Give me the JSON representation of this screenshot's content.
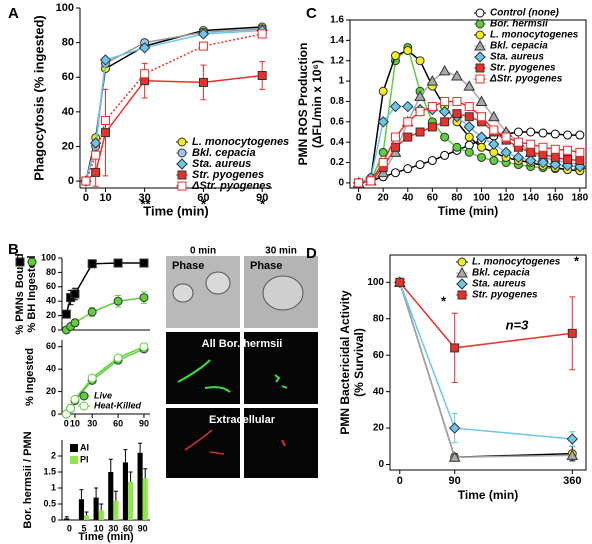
{
  "chart_data": [
    {
      "type": "line",
      "panel_label": "A",
      "xlabel": "Time (min)",
      "ylabel": [
        "Phagocytosis (% ingested)"
      ],
      "x": [
        0,
        5,
        10,
        30,
        60,
        90
      ],
      "xlim": [
        -3,
        95
      ],
      "xticks": [
        0,
        10,
        30,
        60,
        90
      ],
      "ylim": [
        -4,
        100
      ],
      "yticks": [
        0,
        20,
        40,
        60,
        80,
        100
      ],
      "series": [
        {
          "name": "L. monocytogenes",
          "color": "#f2ee1a",
          "line_color": "#000000",
          "marker": "circle",
          "values": [
            0,
            25,
            65,
            78,
            87,
            89
          ]
        },
        {
          "name": "Bkl. cepacia",
          "color": "#9fc9ea",
          "line_color": "#9a9a9a",
          "marker": "circle",
          "values": [
            0,
            20,
            68,
            80,
            86,
            88
          ]
        },
        {
          "name": "Sta. aureus",
          "color": "#6cc6ea",
          "marker": "diamond",
          "values": [
            0,
            22,
            70,
            77,
            85,
            87
          ]
        },
        {
          "name": "Str. pyogenes",
          "color": "#e8312a",
          "marker": "square",
          "values": [
            0,
            5,
            28,
            58,
            57,
            61
          ],
          "errors": [
            0,
            8,
            25,
            10,
            10,
            8
          ]
        },
        {
          "name": "ΔStr. pyogenes",
          "color": "#e8312a",
          "marker": "square",
          "filled": false,
          "dashed": true,
          "values": [
            0,
            15,
            35,
            62,
            78,
            85
          ]
        }
      ],
      "annotations": [
        "**",
        "*",
        "*"
      ]
    },
    {
      "type": "line",
      "panel_label": "B",
      "ylabel": [
        "% PMNs Bound",
        "% BH Ingested"
      ],
      "x": [
        0,
        5,
        10,
        30,
        60,
        90
      ],
      "xlim": [
        -5,
        97
      ],
      "ylim": [
        0,
        100
      ],
      "yticks": [
        0,
        20,
        40,
        60,
        80,
        100
      ],
      "series": [
        {
          "color": "#000000",
          "marker": "square",
          "values": [
            22,
            45,
            50,
            92,
            93,
            93
          ],
          "errors": [
            5,
            10,
            8,
            4,
            4,
            4
          ]
        },
        {
          "color": "#5ccf3a",
          "marker": "circle",
          "values": [
            0,
            5,
            10,
            25,
            40,
            45
          ],
          "errors": [
            2,
            4,
            5,
            6,
            8,
            8
          ]
        }
      ]
    },
    {
      "type": "line",
      "ylabel": [
        "% Ingested"
      ],
      "x": [
        0,
        5,
        10,
        30,
        60,
        90
      ],
      "xlim": [
        -5,
        97
      ],
      "xticks": [
        0,
        10,
        30,
        60,
        90
      ],
      "ylim": [
        0,
        66
      ],
      "yticks": [
        0,
        20,
        40,
        60
      ],
      "series": [
        {
          "name": "Live",
          "color": "#5ccf3a",
          "marker": "circle",
          "values": [
            0,
            5,
            12,
            30,
            48,
            58
          ]
        },
        {
          "name": "Heat-Killed",
          "color": "#5ccf3a",
          "marker": "circle",
          "filled": false,
          "values": [
            0,
            5,
            13,
            32,
            50,
            60
          ]
        }
      ]
    },
    {
      "type": "bar",
      "xlabel": "Time (min)",
      "ylabel": [
        "Bor. hermsii / PMN"
      ],
      "categories": [
        "0",
        "5",
        "10",
        "30",
        "60",
        "90"
      ],
      "ylim": [
        0,
        2.5
      ],
      "yticks": [
        0,
        0.5,
        1,
        1.5,
        2
      ],
      "series": [
        {
          "name": "AI",
          "color": "#000000",
          "values": [
            0.05,
            0.65,
            0.7,
            1.5,
            1.8,
            2.1
          ],
          "errors": [
            0.05,
            0.3,
            0.3,
            0.4,
            0.4,
            0.3
          ]
        },
        {
          "name": "PI",
          "color": "#8ee64a",
          "values": [
            0,
            0.15,
            0.3,
            0.6,
            1.2,
            1.3
          ],
          "errors": [
            0,
            0.1,
            0.2,
            0.3,
            0.3,
            0.3
          ]
        }
      ]
    },
    {
      "type": "line",
      "panel_label": "C",
      "xlabel": "Time (min)",
      "ylabel": [
        "PMN ROS Production",
        "(ΔFL/min x 10⁶)"
      ],
      "x": [
        0,
        10,
        20,
        30,
        40,
        50,
        60,
        70,
        80,
        90,
        100,
        110,
        120,
        130,
        140,
        150,
        160,
        170,
        180
      ],
      "xlim": [
        -7,
        185
      ],
      "xticks": [
        0,
        20,
        40,
        60,
        80,
        100,
        120,
        140,
        160,
        180
      ],
      "ylim": [
        -0.05,
        1.6
      ],
      "yticks": [
        0,
        0.2,
        0.4,
        0.6,
        0.8,
        1.0,
        1.2,
        1.4,
        1.6
      ],
      "series": [
        {
          "name": "Control (none)",
          "color": "#000000",
          "marker": "circle",
          "filled": false,
          "values": [
            0,
            0.02,
            0.06,
            0.1,
            0.14,
            0.18,
            0.22,
            0.27,
            0.32,
            0.37,
            0.42,
            0.46,
            0.48,
            0.5,
            0.5,
            0.49,
            0.48,
            0.47,
            0.47
          ]
        },
        {
          "name": "Bor. hermsii",
          "color": "#5ccf3a",
          "marker": "circle",
          "values": [
            0,
            0.02,
            0.3,
            1.2,
            1.33,
            0.9,
            0.6,
            0.45,
            0.35,
            0.3,
            0.25,
            0.22,
            0.2,
            0.18,
            0.16,
            0.15,
            0.14,
            0.13,
            0.12
          ]
        },
        {
          "name": "L. monocytogenes",
          "color": "#f2ee1a",
          "line_color": "#000000",
          "marker": "circle",
          "values": [
            0,
            0.05,
            0.9,
            1.25,
            1.3,
            1.2,
            0.95,
            0.75,
            0.6,
            0.45,
            0.35,
            0.3,
            0.25,
            0.22,
            0.2,
            0.17,
            0.15,
            0.13,
            0.12
          ]
        },
        {
          "name": "Bkl. cepacia",
          "color": "#a8a8a8",
          "marker": "triangle",
          "values": [
            0,
            0.02,
            0.1,
            0.3,
            0.6,
            0.85,
            1.0,
            1.1,
            1.05,
            0.95,
            0.8,
            0.65,
            0.5,
            0.4,
            0.3,
            0.25,
            0.22,
            0.2,
            0.18
          ]
        },
        {
          "name": "Sta. aureus",
          "color": "#6cc6ea",
          "marker": "diamond",
          "values": [
            0,
            0.05,
            0.6,
            0.75,
            0.75,
            0.72,
            0.72,
            0.7,
            0.65,
            0.55,
            0.45,
            0.38,
            0.3,
            0.25,
            0.22,
            0.2,
            0.18,
            0.17,
            0.16
          ]
        },
        {
          "name": "Str. pyogenes",
          "color": "#e8312a",
          "marker": "square",
          "values": [
            0,
            0.02,
            0.15,
            0.35,
            0.45,
            0.5,
            0.55,
            0.6,
            0.68,
            0.65,
            0.6,
            0.5,
            0.42,
            0.35,
            0.3,
            0.28,
            0.25,
            0.23,
            0.22
          ]
        },
        {
          "name": "ΔStr. pyogenes",
          "color": "#e8312a",
          "marker": "square",
          "filled": false,
          "values": [
            0,
            0.02,
            0.2,
            0.45,
            0.6,
            0.7,
            0.75,
            0.8,
            0.8,
            0.75,
            0.65,
            0.52,
            0.45,
            0.4,
            0.38,
            0.35,
            0.33,
            0.32,
            0.3
          ]
        }
      ]
    },
    {
      "type": "line",
      "panel_label": "D",
      "xlabel": "Time (min)",
      "ylabel": [
        "PMN Bactericidal Activity",
        "(% Survival)"
      ],
      "categories": [
        "0",
        "90",
        "360"
      ],
      "ylim": [
        -3,
        115
      ],
      "yticks": [
        0,
        20,
        40,
        60,
        80,
        100
      ],
      "series": [
        {
          "name": "L. monocytogenes",
          "color": "#f2ee1a",
          "line_color": "#000000",
          "marker": "circle",
          "values": [
            100,
            4,
            6
          ],
          "errors": [
            0,
            2,
            4
          ]
        },
        {
          "name": "Bkl. cepacia",
          "color": "#a8a8a8",
          "marker": "triangle",
          "values": [
            100,
            4,
            5
          ]
        },
        {
          "name": "Sta. aureus",
          "color": "#6cc6ea",
          "marker": "diamond",
          "values": [
            100,
            20,
            14
          ],
          "errors": [
            0,
            8,
            4
          ]
        },
        {
          "name": "Str. pyogenes",
          "color": "#e8312a",
          "marker": "square",
          "values": [
            100,
            64,
            72
          ],
          "errors": [
            0,
            19,
            20
          ]
        }
      ],
      "annotations": [
        "n=3",
        "*",
        "*"
      ]
    }
  ],
  "micrographs": {
    "columns": [
      "0 min",
      "30 min"
    ],
    "labels": [
      "Phase",
      "Phase",
      "All Bor. hermsii",
      "Extracellular"
    ]
  }
}
